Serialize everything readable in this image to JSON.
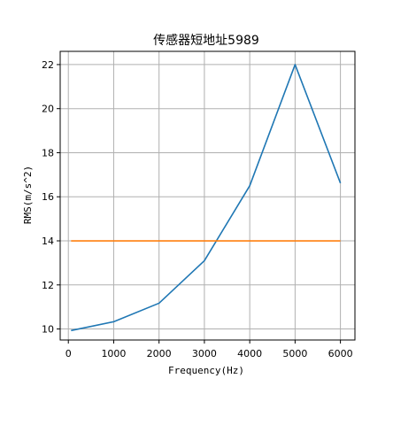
{
  "chart_data": {
    "type": "line",
    "title": "传感器短地址5989",
    "xlabel": "Frequency(Hz)",
    "ylabel": "RMS(m/s^2)",
    "xlim": [
      -180,
      6320
    ],
    "ylim": [
      9.5,
      22.6
    ],
    "xticks": [
      0,
      1000,
      2000,
      3000,
      4000,
      5000,
      6000
    ],
    "yticks": [
      10,
      12,
      14,
      16,
      18,
      20,
      22
    ],
    "grid": true,
    "series": [
      {
        "color": "#1f77b4",
        "x": [
          60,
          1000,
          2000,
          3000,
          4000,
          5000,
          6000
        ],
        "y": [
          9.93,
          10.33,
          11.17,
          13.1,
          16.5,
          22.0,
          16.62
        ]
      },
      {
        "color": "#ff7f0e",
        "x": [
          60,
          6000
        ],
        "y": [
          14.0,
          14.0
        ]
      }
    ]
  }
}
